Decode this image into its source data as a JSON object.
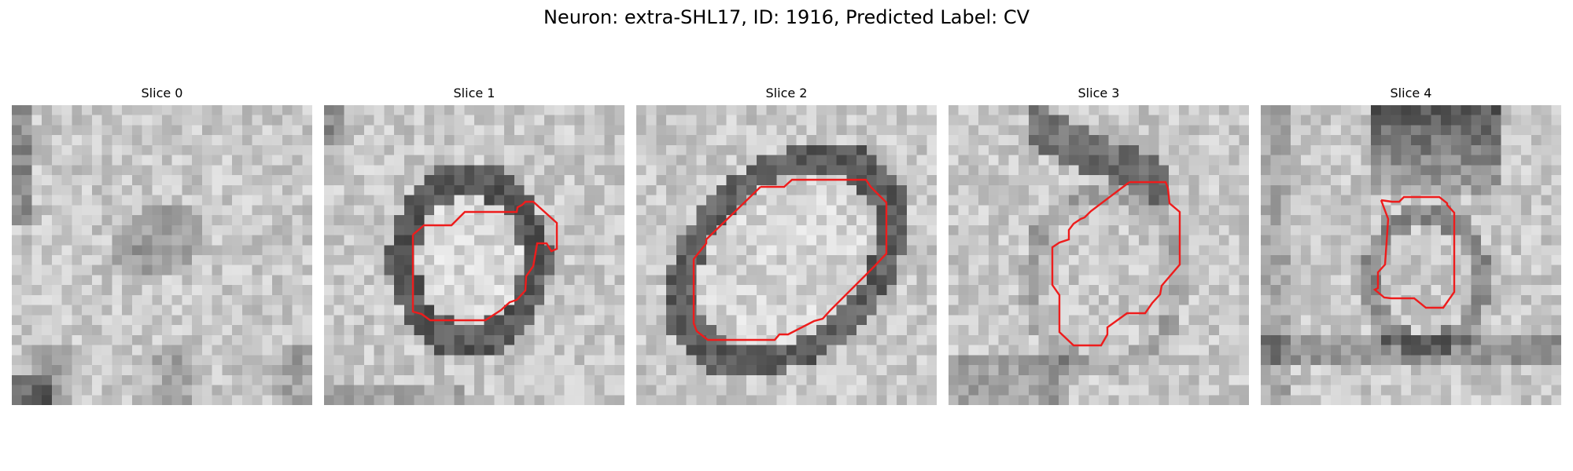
{
  "figure": {
    "title": "Neuron: extra-SHL17, ID: 1916, Predicted Label: CV",
    "contour_color": "#ee1c1c"
  },
  "slices": [
    {
      "label": "Slice 0"
    },
    {
      "label": "Slice 1"
    },
    {
      "label": "Slice 2"
    },
    {
      "label": "Slice 3"
    },
    {
      "label": "Slice 4"
    }
  ]
}
